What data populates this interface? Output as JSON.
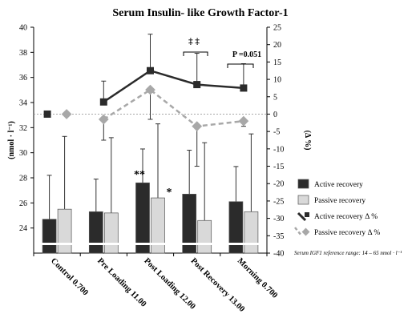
{
  "chart_data": {
    "type": "bar",
    "title": "Serum Insulin- like Growth Factor-1",
    "ylabel_left": "(nmol · l⁻¹)",
    "ylabel_right": "(Δ %)",
    "ylim_left": [
      22,
      40
    ],
    "ylim_right": [
      -40,
      25
    ],
    "left_ticks": [
      "24",
      "26",
      "28",
      "30",
      "32",
      "34",
      "36",
      "38",
      "40"
    ],
    "right_ticks": [
      "-40",
      "-35",
      "-30",
      "-25",
      "-20",
      "-15",
      "-10",
      "-5",
      "0",
      "5",
      "10",
      "15",
      "20",
      "25"
    ],
    "categories": [
      "Control 0.700",
      "Pre Loading 11.00",
      "Post Loading 12.00",
      "Post Recovery 13.00",
      "Morning 0.700"
    ],
    "series": [
      {
        "name": "Active recovery",
        "kind": "bar",
        "color": "#2b2b2b",
        "values": [
          24.7,
          25.3,
          27.6,
          26.7,
          26.1
        ],
        "err_upper": [
          28.2,
          27.9,
          30.3,
          30.2,
          28.9
        ]
      },
      {
        "name": "Passive recovery",
        "kind": "bar",
        "color": "#d9d9d9",
        "values": [
          25.5,
          25.2,
          26.4,
          24.6,
          25.3
        ],
        "err_upper": [
          31.3,
          31.2,
          32.3,
          30.8,
          31.5
        ]
      },
      {
        "name": "Active recovery Δ %",
        "kind": "line",
        "color": "#2b2b2b",
        "values": [
          0,
          3.5,
          12.5,
          8.5,
          7.5
        ],
        "err_upper": [
          null,
          9.5,
          23,
          17.5,
          14.5
        ],
        "err_lower": [
          null,
          null,
          null,
          null,
          null
        ]
      },
      {
        "name": "Passive recovery Δ %",
        "kind": "line",
        "color": "#a8a8a8",
        "values": [
          0,
          -1.5,
          7,
          -3.5,
          -2
        ],
        "err_upper": [
          null,
          null,
          null,
          null,
          null
        ],
        "err_lower": [
          null,
          -7.5,
          -1.5,
          -15,
          -3.5
        ]
      }
    ],
    "annotations": {
      "double_star": "**",
      "single_star": "*",
      "dagger": "‡ ‡",
      "p_value": "P =0.051",
      "reference": "Serum IGF1 reference range: 14 – 65 nmol · l⁻¹"
    },
    "legend_position": "right"
  }
}
